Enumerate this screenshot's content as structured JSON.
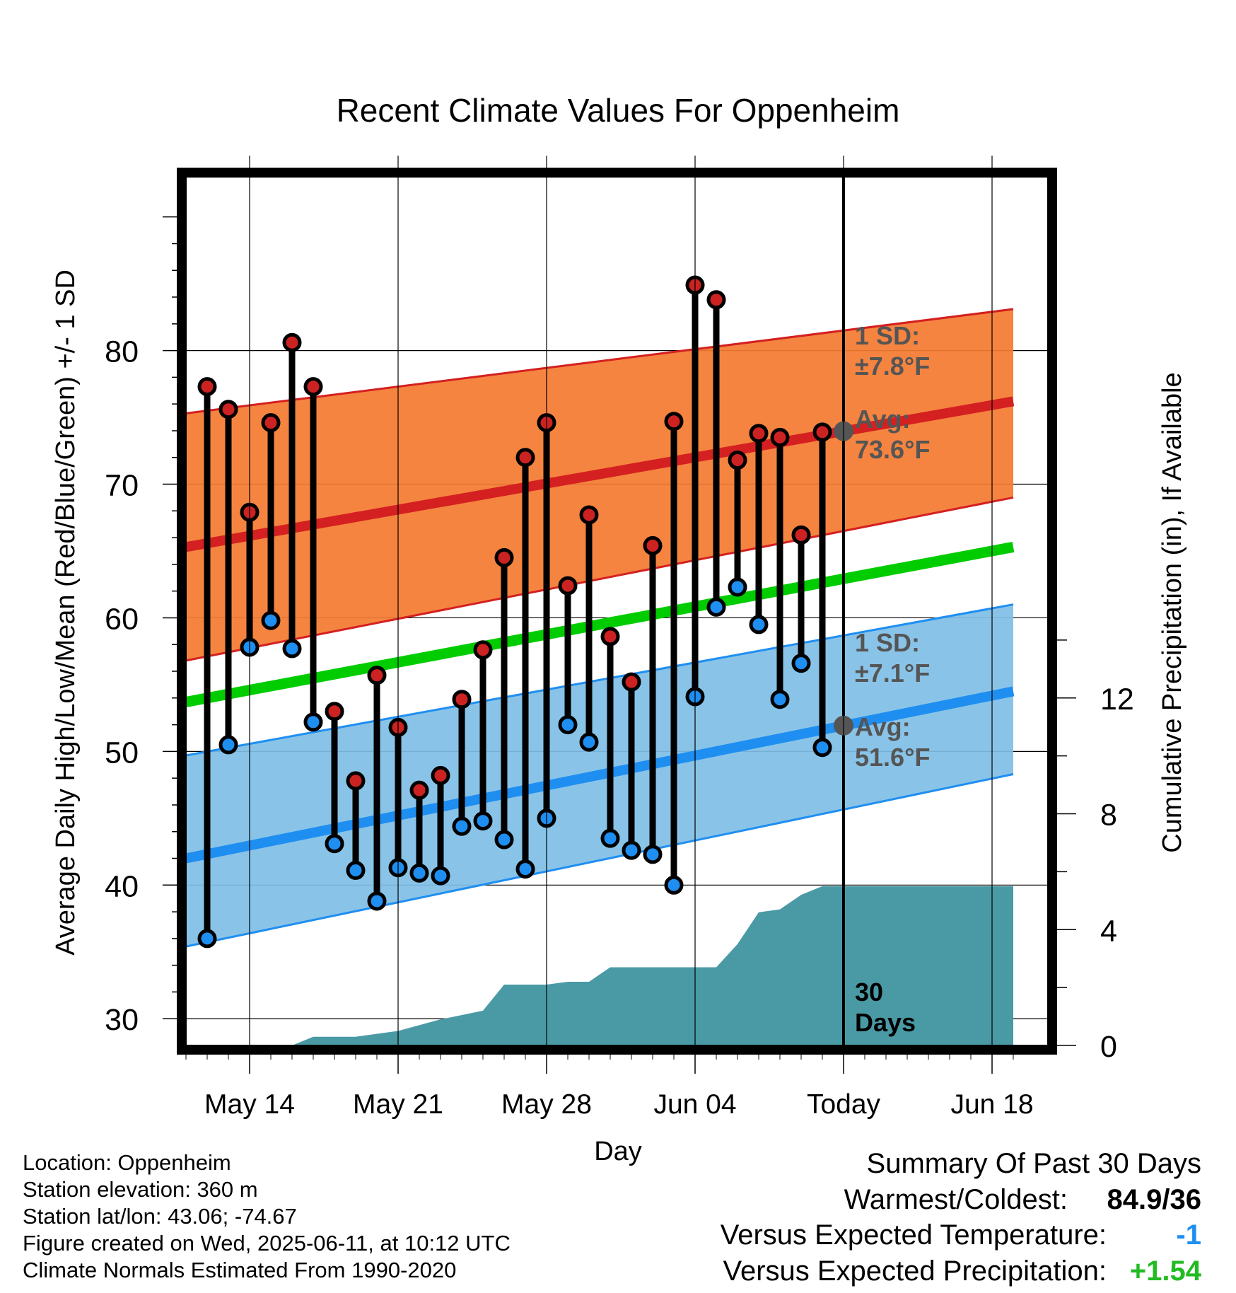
{
  "chart_data": {
    "type": "line",
    "title": "Recent Climate Values For Oppenheim",
    "xlabel": "Day",
    "ylabel": "Average Daily High/Low/Mean (Red/Blue/Green) +/- 1 SD",
    "y2label": "Cumulative Precipitation (in), If Available",
    "ylim": [
      28,
      93
    ],
    "y2lim": [
      0,
      30
    ],
    "yticks": [
      "30",
      "40",
      "50",
      "60",
      "70",
      "80"
    ],
    "y2ticks": [
      "0",
      "4",
      "8",
      "12"
    ],
    "xticks": [
      "May 14",
      "May 21",
      "May 28",
      "Jun 04",
      "Today",
      "Jun 18"
    ],
    "grid": true,
    "days": [
      "May 12",
      "May 13",
      "May 14",
      "May 15",
      "May 16",
      "May 17",
      "May 18",
      "May 19",
      "May 20",
      "May 21",
      "May 22",
      "May 23",
      "May 24",
      "May 25",
      "May 26",
      "May 27",
      "May 28",
      "May 29",
      "May 30",
      "May 31",
      "Jun 01",
      "Jun 02",
      "Jun 03",
      "Jun 04",
      "Jun 05",
      "Jun 06",
      "Jun 07",
      "Jun 08",
      "Jun 09",
      "Jun 10"
    ],
    "highs": [
      77.3,
      75.6,
      67.9,
      74.6,
      80.6,
      77.3,
      53.0,
      47.8,
      55.7,
      51.8,
      47.1,
      48.2,
      53.9,
      57.6,
      64.5,
      72.0,
      74.6,
      62.4,
      67.7,
      58.6,
      55.2,
      65.4,
      74.7,
      84.9,
      83.8,
      71.8,
      73.8,
      73.5,
      66.2,
      73.9
    ],
    "lows": [
      36.0,
      50.5,
      57.8,
      59.8,
      57.7,
      52.2,
      43.1,
      41.1,
      38.8,
      41.3,
      40.9,
      40.7,
      44.4,
      44.8,
      43.4,
      41.2,
      45.0,
      52.0,
      50.7,
      43.5,
      42.6,
      42.3,
      40.0,
      54.1,
      60.8,
      62.3,
      59.5,
      53.9,
      56.6,
      50.3
    ],
    "normals": {
      "x_range": [
        "May 11",
        "Jun 19"
      ],
      "avg_high": [
        65.3,
        76.2
      ],
      "high_sd_upper": [
        75.3,
        83.1
      ],
      "high_sd_lower": [
        56.8,
        69.0
      ],
      "avg_low": [
        42.0,
        54.5
      ],
      "low_sd_upper": [
        49.7,
        61.0
      ],
      "low_sd_lower": [
        35.4,
        48.3
      ],
      "avg_mean": [
        53.7,
        65.3
      ]
    },
    "precip_cumulative": [
      {
        "x": "May 16",
        "y": 0.0
      },
      {
        "x": "May 17",
        "y": 0.3
      },
      {
        "x": "May 19",
        "y": 0.3
      },
      {
        "x": "May 21",
        "y": 0.5
      },
      {
        "x": "May 23",
        "y": 0.9
      },
      {
        "x": "May 25",
        "y": 1.2
      },
      {
        "x": "May 26",
        "y": 2.1
      },
      {
        "x": "May 28",
        "y": 2.1
      },
      {
        "x": "May 29",
        "y": 2.2
      },
      {
        "x": "May 30",
        "y": 2.2
      },
      {
        "x": "May 31",
        "y": 2.7
      },
      {
        "x": "Jun 04",
        "y": 2.7
      },
      {
        "x": "Jun 05",
        "y": 2.7
      },
      {
        "x": "Jun 06",
        "y": 3.5
      },
      {
        "x": "Jun 07",
        "y": 4.6
      },
      {
        "x": "Jun 08",
        "y": 4.7
      },
      {
        "x": "Jun 09",
        "y": 5.2
      },
      {
        "x": "Jun 10",
        "y": 5.5
      },
      {
        "x": "Jun 19",
        "y": 5.5
      }
    ],
    "annotations": {
      "high_sd_line1": "1 SD:",
      "high_sd_line2": "±7.8°F",
      "high_avg_line1": "Avg:",
      "high_avg_line2": "73.6°F",
      "low_sd_line1": "1 SD:",
      "low_sd_line2": "±7.1°F",
      "low_avg_line1": "Avg:",
      "low_avg_line2": "51.6°F",
      "period_line1": "30",
      "period_line2": "Days"
    }
  },
  "colors": {
    "high_band": "#f47a30",
    "high_line": "#d42020",
    "low_band": "#7fbfe6",
    "low_line": "#1f8ef1",
    "mean_line": "#00cc00",
    "precip": "#4a9aa5",
    "high_marker": "#cc2222",
    "low_marker": "#1f8ef1",
    "annotation": "#555555",
    "departure_temp": "#1f8ef1",
    "departure_precip": "#22bb22"
  },
  "station_info": {
    "location": "Location: Oppenheim",
    "elevation": "Station elevation: 360 m",
    "latlon": "Station lat/lon: 43.06; -74.67",
    "created": "Figure created on Wed, 2025-06-11, at 10:12 UTC",
    "normals": "Climate Normals Estimated From 1990-2020"
  },
  "summary": {
    "heading": "Summary Of Past 30 Days",
    "warmest_label": "Warmest/Coldest:",
    "warmest_value": "84.9/36",
    "temp_label": "Versus Expected Temperature:",
    "temp_value": "-1",
    "precip_label": "Versus Expected Precipitation:",
    "precip_value": "+1.54"
  }
}
